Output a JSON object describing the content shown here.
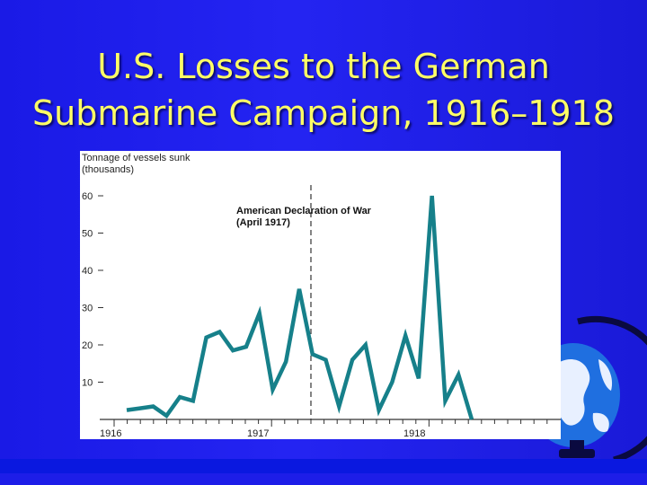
{
  "slide": {
    "title_line1": "U.S. Losses to the German",
    "title_line2": "Submarine Campaign, 1916–1918",
    "title_color": "#ffff66",
    "background_color": "#2020ee"
  },
  "globe": {
    "icon": "globe-icon"
  },
  "chart_data": {
    "type": "line",
    "ylabel_line1": "Tonnage of vessels sunk",
    "ylabel_line2": "(thousands)",
    "yticks": [
      10,
      20,
      30,
      40,
      50,
      60
    ],
    "ylim": [
      0,
      63
    ],
    "x_year_labels": [
      "1916",
      "1917",
      "1918"
    ],
    "annotation_line1": "American Declaration of War",
    "annotation_line2": "(April 1917)",
    "line_color": "#16808a",
    "series": [
      {
        "values": [
          2.5,
          3.0,
          3.5,
          1.0,
          6.0,
          5.0,
          22.0,
          23.5,
          18.5,
          19.5,
          28.5,
          8.0,
          15.5,
          35.0,
          17.5,
          16.0,
          3.5,
          16.0,
          20.0,
          2.5,
          10.0,
          22.5,
          11.0,
          60.0,
          5.0,
          12.0,
          0.0
        ]
      }
    ]
  }
}
